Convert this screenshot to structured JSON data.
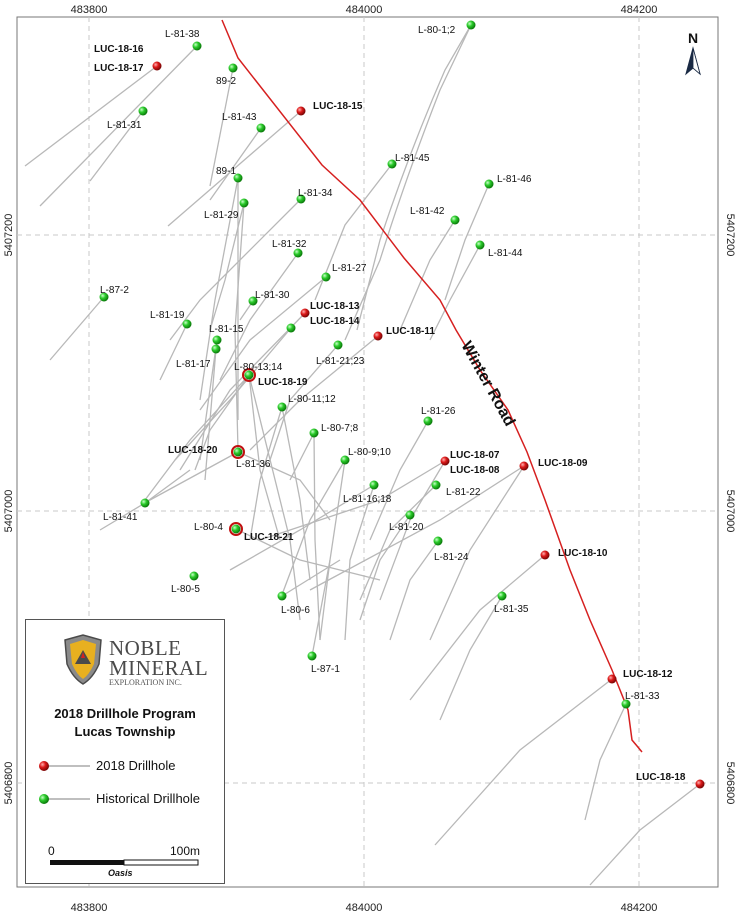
{
  "axes": {
    "x_ticks": [
      {
        "label": "483800",
        "value": 483800
      },
      {
        "label": "484000",
        "value": 484000
      },
      {
        "label": "484200",
        "value": 484200
      }
    ],
    "y_ticks": [
      {
        "label": "5407200",
        "value": 5407200
      },
      {
        "label": "5407000",
        "value": 5407000
      },
      {
        "label": "5406800",
        "value": 5406800
      }
    ]
  },
  "north_label": "N",
  "road_label": "Winter Road",
  "colors": {
    "road": "#d62020",
    "drillhole_2018": "#d01818",
    "drillhole_historical": "#22bb22",
    "trace": "#b8b8b8",
    "grid": "#c8c8c8"
  },
  "drillholes_2018": [
    "LUC-18-16",
    "LUC-18-17",
    "LUC-18-15",
    "LUC-18-13",
    "LUC-18-14",
    "LUC-18-11",
    "LUC-18-19",
    "LUC-18-20",
    "LUC-18-07",
    "LUC-18-08",
    "LUC-18-09",
    "LUC-18-21",
    "LUC-18-10",
    "LUC-18-12",
    "LUC-18-18"
  ],
  "drillholes_historical": [
    "L-81-38",
    "89-2",
    "L-81-31",
    "L-81-43",
    "L-80-1;2",
    "L-81-45",
    "89-1",
    "L-81-34",
    "L-81-29",
    "L-81-46",
    "L-81-42",
    "L-81-44",
    "L-81-32",
    "L-81-27",
    "L-87-2",
    "L-81-30",
    "L-81-19",
    "L-81-15",
    "L-81-17",
    "L-81-21;23",
    "L-80-13;14",
    "L-80-11;12",
    "L-81-26",
    "L-80-7;8",
    "L-81-36",
    "L-80-9;10",
    "L-81-22",
    "L-81-16;18",
    "L-81-41",
    "L-81-20",
    "L-80-4",
    "L-81-24",
    "L-80-5",
    "L-81-35",
    "L-80-6",
    "L-87-1",
    "L-81-33"
  ],
  "legend": {
    "company_line1": "NOBLE",
    "company_line2": "MINERAL",
    "company_line3": "EXPLORATION INC.",
    "title_line1": "2018 Drillhole Program",
    "title_line2": "Lucas Township",
    "items": [
      {
        "label": "2018 Drillhole",
        "color": "#d01818"
      },
      {
        "label": "Historical Drillhole",
        "color": "#22bb22"
      }
    ],
    "scale_start": "0",
    "scale_end": "100m",
    "software_mark": "Oasis"
  }
}
